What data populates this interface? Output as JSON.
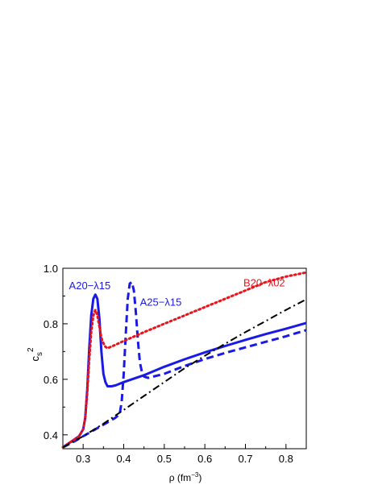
{
  "chart_data": {
    "type": "line",
    "xlabel": {
      "main": "ρ (fm",
      "sup": "−3",
      "tail": ")"
    },
    "ylabel": {
      "main": "c",
      "sub": "s",
      "sup": "2"
    },
    "xlim": [
      0.25,
      0.85
    ],
    "ylim": [
      0.35,
      1.0
    ],
    "x_ticks": [
      {
        "value": 0.3,
        "label": "0.3"
      },
      {
        "value": 0.4,
        "label": "0.4"
      },
      {
        "value": 0.5,
        "label": "0.5"
      },
      {
        "value": 0.6,
        "label": "0.6"
      },
      {
        "value": 0.7,
        "label": "0.7"
      },
      {
        "value": 0.8,
        "label": "0.8"
      }
    ],
    "y_ticks": [
      {
        "value": 0.4,
        "label": "0.4"
      },
      {
        "value": 0.6,
        "label": "0.6"
      },
      {
        "value": 0.8,
        "label": "0.8"
      },
      {
        "value": 1.0,
        "label": "1.0"
      }
    ],
    "grid": false,
    "series": [
      {
        "name": "A20−λ15",
        "style": "solid",
        "color": "#1a1ae6",
        "x": [
          0.25,
          0.27,
          0.29,
          0.3,
          0.305,
          0.31,
          0.315,
          0.32,
          0.325,
          0.33,
          0.335,
          0.34,
          0.345,
          0.35,
          0.355,
          0.36,
          0.37,
          0.38,
          0.4,
          0.45,
          0.5,
          0.55,
          0.6,
          0.65,
          0.7,
          0.75,
          0.8,
          0.85
        ],
        "y": [
          0.355,
          0.375,
          0.395,
          0.42,
          0.46,
          0.56,
          0.71,
          0.83,
          0.89,
          0.905,
          0.89,
          0.82,
          0.7,
          0.62,
          0.59,
          0.575,
          0.575,
          0.578,
          0.59,
          0.615,
          0.645,
          0.672,
          0.697,
          0.72,
          0.742,
          0.763,
          0.782,
          0.803
        ]
      },
      {
        "name": "A25−λ15",
        "style": "dashed",
        "color": "#1a1ae6",
        "x": [
          0.25,
          0.28,
          0.3,
          0.33,
          0.36,
          0.38,
          0.39,
          0.395,
          0.4,
          0.405,
          0.41,
          0.415,
          0.42,
          0.425,
          0.43,
          0.435,
          0.44,
          0.445,
          0.45,
          0.46,
          0.5,
          0.55,
          0.6,
          0.65,
          0.7,
          0.75,
          0.8,
          0.85
        ],
        "y": [
          0.355,
          0.378,
          0.395,
          0.42,
          0.445,
          0.462,
          0.475,
          0.52,
          0.62,
          0.76,
          0.89,
          0.945,
          0.95,
          0.92,
          0.84,
          0.74,
          0.66,
          0.625,
          0.61,
          0.605,
          0.62,
          0.648,
          0.673,
          0.695,
          0.715,
          0.735,
          0.755,
          0.777
        ]
      },
      {
        "name": "B20−λ02",
        "style": "dotted",
        "color": "#e8141c",
        "x": [
          0.25,
          0.27,
          0.29,
          0.3,
          0.305,
          0.31,
          0.315,
          0.32,
          0.325,
          0.33,
          0.335,
          0.34,
          0.345,
          0.35,
          0.355,
          0.36,
          0.37,
          0.4,
          0.45,
          0.5,
          0.55,
          0.6,
          0.65,
          0.7,
          0.75,
          0.8,
          0.85
        ],
        "y": [
          0.355,
          0.375,
          0.395,
          0.42,
          0.46,
          0.55,
          0.67,
          0.77,
          0.83,
          0.85,
          0.83,
          0.79,
          0.75,
          0.73,
          0.717,
          0.712,
          0.718,
          0.738,
          0.77,
          0.8,
          0.83,
          0.86,
          0.89,
          0.92,
          0.95,
          0.97,
          0.985
        ]
      },
      {
        "name": "",
        "style": "dashdot",
        "color": "#000000",
        "x": [
          0.25,
          0.3,
          0.35,
          0.4,
          0.45,
          0.5,
          0.55,
          0.6,
          0.65,
          0.7,
          0.75,
          0.8,
          0.85
        ],
        "y": [
          0.355,
          0.395,
          0.44,
          0.49,
          0.54,
          0.59,
          0.64,
          0.685,
          0.728,
          0.77,
          0.81,
          0.85,
          0.888
        ]
      }
    ],
    "annotations": [
      {
        "text": "A20−λ15",
        "x": 0.265,
        "y": 0.925,
        "color": "#1a1ae6"
      },
      {
        "text": "A25−λ15",
        "x": 0.44,
        "y": 0.865,
        "color": "#1a1ae6"
      },
      {
        "text": "B20−λ02",
        "x": 0.695,
        "y": 0.935,
        "color": "#e8141c"
      }
    ]
  }
}
